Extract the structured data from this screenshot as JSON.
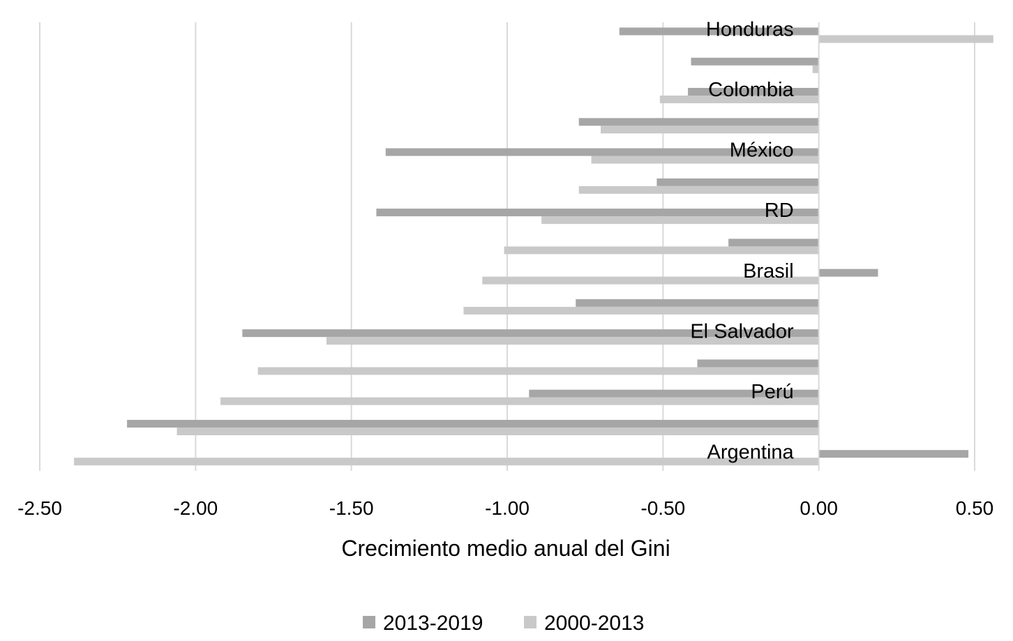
{
  "chart_data": {
    "type": "bar",
    "orientation": "horizontal",
    "categories": [
      "Honduras",
      "",
      "Colombia",
      "",
      "México",
      "",
      "RD",
      "",
      "Brasil",
      "",
      "El Salvador",
      "",
      "Perú",
      "",
      "Argentina"
    ],
    "series": [
      {
        "name": "2013-2019",
        "color": "#a6a6a6",
        "values": [
          -0.64,
          -0.41,
          -0.42,
          -0.77,
          -1.39,
          -0.52,
          -1.42,
          -0.29,
          0.19,
          -0.78,
          -1.85,
          -0.39,
          -0.93,
          -2.22,
          0.48
        ]
      },
      {
        "name": "2000-2013",
        "color": "#c9c9c9",
        "values": [
          0.56,
          -0.02,
          -0.51,
          -0.7,
          -0.73,
          -0.77,
          -0.89,
          -1.01,
          -1.08,
          -1.14,
          -1.58,
          -1.8,
          -1.92,
          -2.06,
          -2.39
        ]
      }
    ],
    "xlim": [
      -2.5,
      0.5
    ],
    "xticks": [
      "-2.50",
      "-2.00",
      "-1.50",
      "-1.00",
      "-0.50",
      "0.00",
      "0.50"
    ],
    "xlabel": "Crecimiento medio anual del Gini",
    "ylabel": "",
    "title": "",
    "grid": "vertical",
    "legend_position": "bottom",
    "gridline_color": "#d9d9d9"
  }
}
